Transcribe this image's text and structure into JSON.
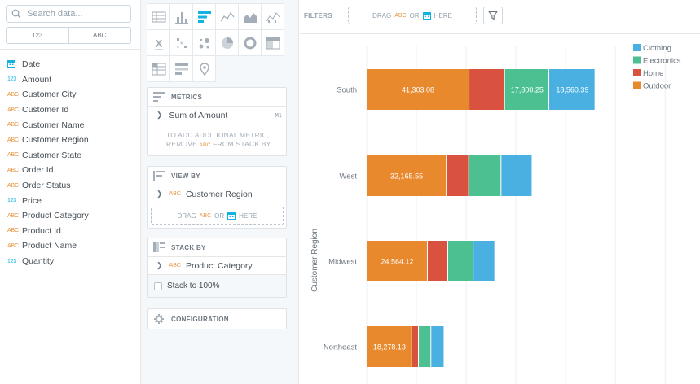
{
  "search": {
    "placeholder": "Search data..."
  },
  "type_switch": {
    "numeric": "123",
    "text": "ABC"
  },
  "fields": [
    {
      "type": "date",
      "label": "Date"
    },
    {
      "type": "123",
      "label": "Amount"
    },
    {
      "type": "ABC",
      "label": "Customer City"
    },
    {
      "type": "ABC",
      "label": "Customer Id"
    },
    {
      "type": "ABC",
      "label": "Customer Name"
    },
    {
      "type": "ABC",
      "label": "Customer Region"
    },
    {
      "type": "ABC",
      "label": "Customer State"
    },
    {
      "type": "ABC",
      "label": "Order Id"
    },
    {
      "type": "ABC",
      "label": "Order Status"
    },
    {
      "type": "123",
      "label": "Price"
    },
    {
      "type": "ABC",
      "label": "Product Category"
    },
    {
      "type": "ABC",
      "label": "Product Id"
    },
    {
      "type": "ABC",
      "label": "Product Name"
    },
    {
      "type": "123",
      "label": "Quantity"
    }
  ],
  "viz_types": [
    "table-icon",
    "column-icon",
    "bar-icon",
    "line-icon",
    "area-icon",
    "scatter-icon",
    "headline-icon",
    "heatmap-icon",
    "bubble-icon",
    "pie-icon",
    "donut-icon",
    "treemap-icon",
    "pivot-icon",
    "bullet-icon",
    "geo-icon"
  ],
  "active_viz": "bar-icon",
  "metrics": {
    "title": "METRICS",
    "item": "Sum of Amount",
    "item_badge": "M1",
    "note_a": "To add additional metric,",
    "note_b": "remove",
    "note_type": "ABC",
    "note_c": "from stack by"
  },
  "viewby": {
    "title": "VIEW BY",
    "item_type": "ABC",
    "item": "Customer Region",
    "drop_a": "DRAG",
    "drop_type": "ABC",
    "drop_or": "OR",
    "drop_b": "HERE"
  },
  "stackby": {
    "title": "STACK BY",
    "item_type": "ABC",
    "item": "Product Category",
    "stack_pct": "Stack to 100%"
  },
  "configuration": {
    "title": "CONFIGURATION"
  },
  "filters": {
    "label": "FILTERS",
    "drop_a": "DRAG",
    "drop_type": "ABC",
    "drop_or": "OR",
    "drop_b": "HERE"
  },
  "colors": {
    "Outdoor": "#e8892e",
    "Home": "#d9513f",
    "Electronics": "#4cc091",
    "Clothing": "#4ab0e2"
  },
  "chart_data": {
    "type": "bar",
    "orientation": "horizontal",
    "stacked": true,
    "ylabel": "Customer Region",
    "categories": [
      "South",
      "West",
      "Midwest",
      "Northeast"
    ],
    "series": [
      {
        "name": "Outdoor",
        "values": [
          41303.08,
          32165.55,
          24564.12,
          18278.13
        ],
        "labels": [
          "41,303.08",
          "32,165.55",
          "24,564.12",
          "18,278.13"
        ]
      },
      {
        "name": "Home",
        "values": [
          14300,
          9000,
          8200,
          2700
        ],
        "labels": [
          "",
          "",
          "",
          ""
        ]
      },
      {
        "name": "Electronics",
        "values": [
          17800.25,
          13000,
          10200,
          5000
        ],
        "labels": [
          "17,800.25",
          "",
          "",
          ""
        ]
      },
      {
        "name": "Clothing",
        "values": [
          18560.39,
          12500,
          8700,
          5300
        ],
        "labels": [
          "18,560.39",
          "",
          "",
          ""
        ]
      }
    ],
    "legend": [
      "Clothing",
      "Electronics",
      "Home",
      "Outdoor"
    ],
    "legend_position": "top-right",
    "xlim": [
      0,
      135000
    ],
    "grid": true
  }
}
